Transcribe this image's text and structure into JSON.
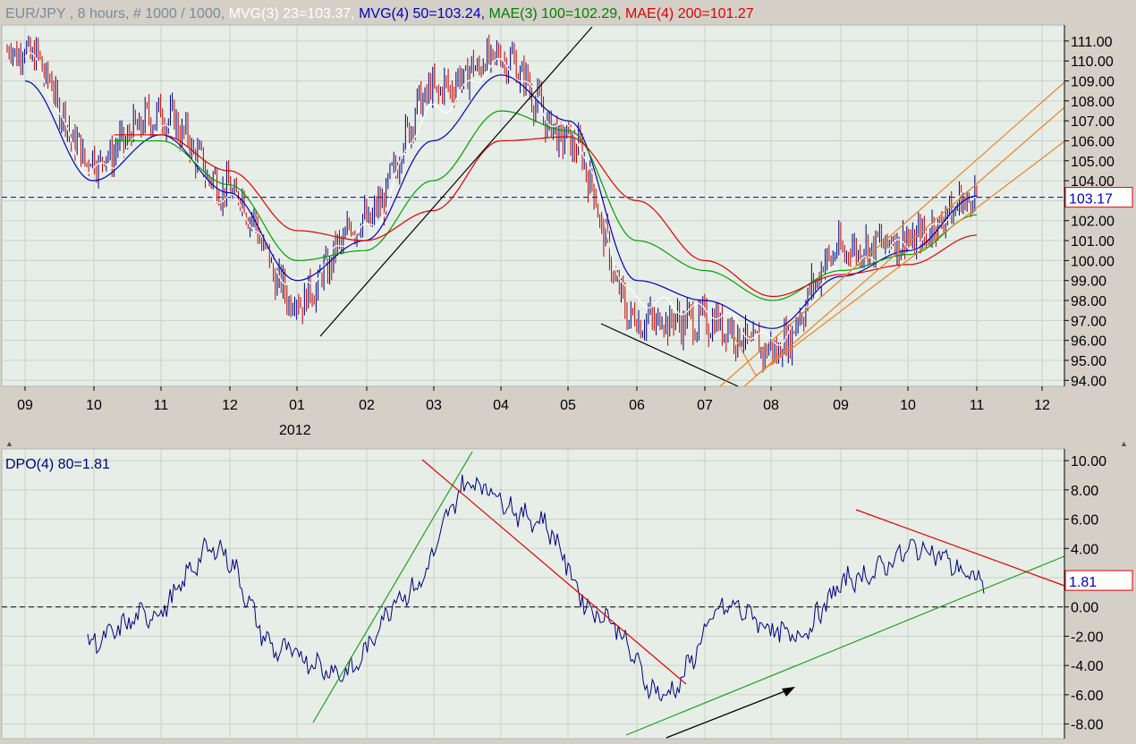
{
  "header": {
    "title_parts": [
      {
        "text": "EUR/JPY , 8 hours, # 1000 / 1000, ",
        "color": "#7a8a99"
      },
      {
        "text": "MVG(3) 23=103.37, ",
        "color": "#ffffff"
      },
      {
        "text": "MVG(4) 50=103.24, ",
        "color": "#0000c0"
      },
      {
        "text": "MAE(3) 100=102.29, ",
        "color": "#008000"
      },
      {
        "text": "MAE(4) 200=101.27",
        "color": "#e00000"
      }
    ]
  },
  "colors": {
    "background": "#e7eee7",
    "grid": "#c8d2c8",
    "price_bars": "#000080",
    "price_bars_down": "#c00000",
    "mvg23": "#ffffff",
    "mvg50": "#0000c0",
    "mae100": "#00a000",
    "mae200": "#e00000",
    "channel": "#f08020",
    "trendline_black": "#000000",
    "dpo": "#000080",
    "dpo_red": "#e00000",
    "dpo_green": "#20a020",
    "last_value_box": "#e00000"
  },
  "chart_data": [
    {
      "type": "line",
      "title": "EUR/JPY , 8 hours, # 1000 / 1000",
      "instrument": "EUR/JPY",
      "timeframe": "8 hours",
      "ylim": [
        93.7,
        111.8
      ],
      "y_ticks": [
        "111.00",
        "110.00",
        "109.00",
        "108.00",
        "107.00",
        "106.00",
        "105.00",
        "104.00",
        "103.00",
        "102.00",
        "101.00",
        "100.00",
        "99.00",
        "98.00",
        "97.00",
        "96.00",
        "95.00",
        "94.00"
      ],
      "x_ticks": [
        "09",
        "10",
        "11",
        "12",
        "01",
        "02",
        "03",
        "04",
        "05",
        "06",
        "07",
        "08",
        "09",
        "10",
        "11",
        "12"
      ],
      "year_label": "2012",
      "last_value": "103.17",
      "reference_line": 103.17,
      "x": [
        "2011-09",
        "2011-10",
        "2011-11",
        "2011-12",
        "2012-01",
        "2012-02",
        "2012-03",
        "2012-04",
        "2012-05",
        "2012-06",
        "2012-07",
        "2012-08",
        "2012-09",
        "2012-10",
        "2012-11"
      ],
      "series": [
        {
          "name": "EUR/JPY",
          "values": [
            110.5,
            105.0,
            107.3,
            103.5,
            98.0,
            102.0,
            108.5,
            110.2,
            106.0,
            97.0,
            97.0,
            95.5,
            100.5,
            101.0,
            103.2
          ]
        },
        {
          "name": "MVG(3) 23",
          "values": [
            110.2,
            104.5,
            106.5,
            103.0,
            98.8,
            101.5,
            107.5,
            109.8,
            106.5,
            98.0,
            97.5,
            96.0,
            99.5,
            100.8,
            103.37
          ]
        },
        {
          "name": "MVG(4) 50",
          "values": [
            109.0,
            104.0,
            106.3,
            103.4,
            99.0,
            101.0,
            106.0,
            109.3,
            107.0,
            99.0,
            98.0,
            96.6,
            99.2,
            100.5,
            103.24
          ]
        },
        {
          "name": "MAE(3) 100",
          "values": [
            null,
            null,
            106.0,
            103.8,
            100.0,
            100.5,
            104.0,
            107.5,
            106.5,
            101.0,
            99.5,
            98.0,
            99.5,
            100.3,
            102.29
          ]
        },
        {
          "name": "MAE(4) 200",
          "values": [
            null,
            null,
            106.3,
            104.5,
            101.5,
            101.0,
            102.5,
            106.0,
            106.2,
            103.0,
            100.0,
            98.2,
            99.3,
            99.8,
            101.27
          ]
        }
      ]
    },
    {
      "type": "line",
      "title": "DPO(4) 80=1.81",
      "ylim": [
        -9.0,
        10.8
      ],
      "y_ticks": [
        "10.00",
        "8.00",
        "6.00",
        "4.00",
        "2.00",
        "0.00",
        "-2.00",
        "-4.00",
        "-6.00",
        "-8.00"
      ],
      "last_value": "1.81",
      "reference_line": 0,
      "x": [
        "2011-09",
        "2011-10",
        "2011-11",
        "2011-12",
        "2012-01",
        "2012-02",
        "2012-03",
        "2012-04",
        "2012-05",
        "2012-06",
        "2012-07",
        "2012-08",
        "2012-09",
        "2012-10",
        "2012-11"
      ],
      "series": [
        {
          "name": "DPO(4) 80",
          "values": [
            -2.5,
            -0.5,
            4.0,
            -3.0,
            -4.5,
            1.0,
            8.5,
            6.0,
            -0.5,
            -6.0,
            0.0,
            -2.0,
            2.0,
            4.0,
            1.81
          ]
        }
      ]
    }
  ]
}
